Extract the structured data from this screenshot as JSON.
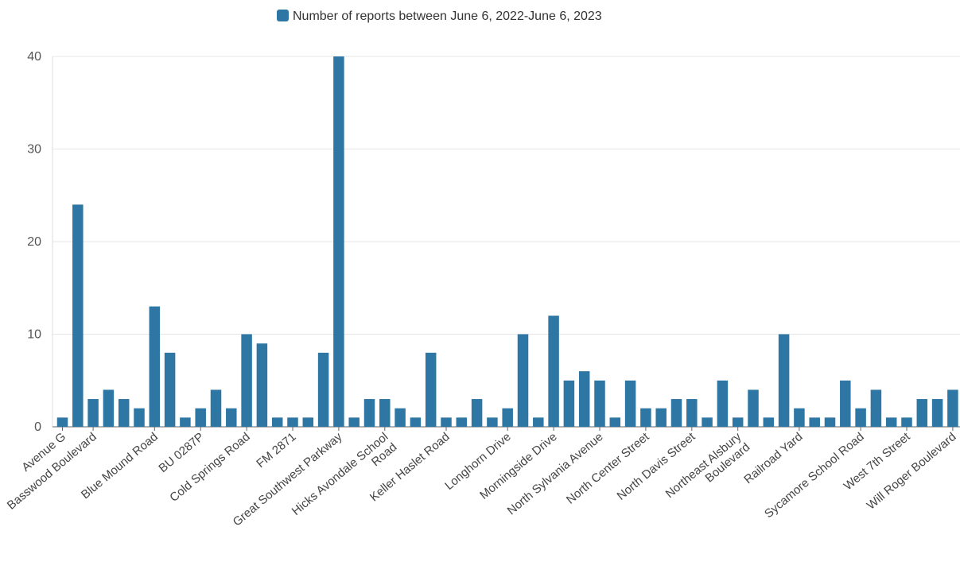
{
  "chart_data": {
    "type": "bar",
    "title": "",
    "xlabel": "",
    "ylabel": "",
    "ylim": [
      0,
      40
    ],
    "yticks": [
      0,
      10,
      20,
      30,
      40
    ],
    "grid": true,
    "legend": {
      "position": "top-center",
      "entries": [
        "Number of reports between June 6, 2022-June 6, 2023"
      ]
    },
    "colors": {
      "bar": "#2e77a4",
      "grid": "#e6e6e6",
      "axis": "#666666"
    },
    "series": [
      {
        "name": "Number of reports between June 6, 2022-June 6, 2023",
        "values": [
          1,
          24,
          3,
          4,
          3,
          2,
          13,
          8,
          1,
          2,
          4,
          2,
          10,
          9,
          1,
          1,
          1,
          8,
          40,
          1,
          3,
          3,
          2,
          1,
          8,
          1,
          1,
          3,
          1,
          2,
          10,
          1,
          12,
          5,
          6,
          5,
          1,
          5,
          2,
          2,
          3,
          3,
          1,
          5,
          1,
          4,
          1,
          10,
          2,
          1,
          1,
          5,
          2,
          4,
          1,
          1,
          3,
          3,
          4
        ]
      }
    ],
    "category_labels": [
      {
        "index": 0,
        "lines": [
          "Avenue G"
        ]
      },
      {
        "index": 2,
        "lines": [
          "Basswood Boulevard"
        ]
      },
      {
        "index": 6,
        "lines": [
          "Blue Mound Road"
        ]
      },
      {
        "index": 9,
        "lines": [
          "BU 0287P"
        ]
      },
      {
        "index": 12,
        "lines": [
          "Cold Springs Road"
        ]
      },
      {
        "index": 15,
        "lines": [
          "FM 2871"
        ]
      },
      {
        "index": 18,
        "lines": [
          "Great Southwest Parkway"
        ]
      },
      {
        "index": 21,
        "lines": [
          "Hicks Avondale School",
          "Road"
        ]
      },
      {
        "index": 25,
        "lines": [
          "Keller Haslet Road"
        ]
      },
      {
        "index": 29,
        "lines": [
          "Longhorn Drive"
        ]
      },
      {
        "index": 32,
        "lines": [
          "Morningside Drive"
        ]
      },
      {
        "index": 35,
        "lines": [
          "North Sylvania Avenue"
        ]
      },
      {
        "index": 38,
        "lines": [
          "North Center Street"
        ]
      },
      {
        "index": 41,
        "lines": [
          "North Davis Street"
        ]
      },
      {
        "index": 44,
        "lines": [
          "Northeast Alsbury",
          "Boulevard"
        ]
      },
      {
        "index": 48,
        "lines": [
          "Railroad Yard"
        ]
      },
      {
        "index": 52,
        "lines": [
          "Sycamore School Road"
        ]
      },
      {
        "index": 55,
        "lines": [
          "West 7th Street"
        ]
      },
      {
        "index": 58,
        "lines": [
          "Will Roger Boulevard"
        ]
      }
    ]
  }
}
